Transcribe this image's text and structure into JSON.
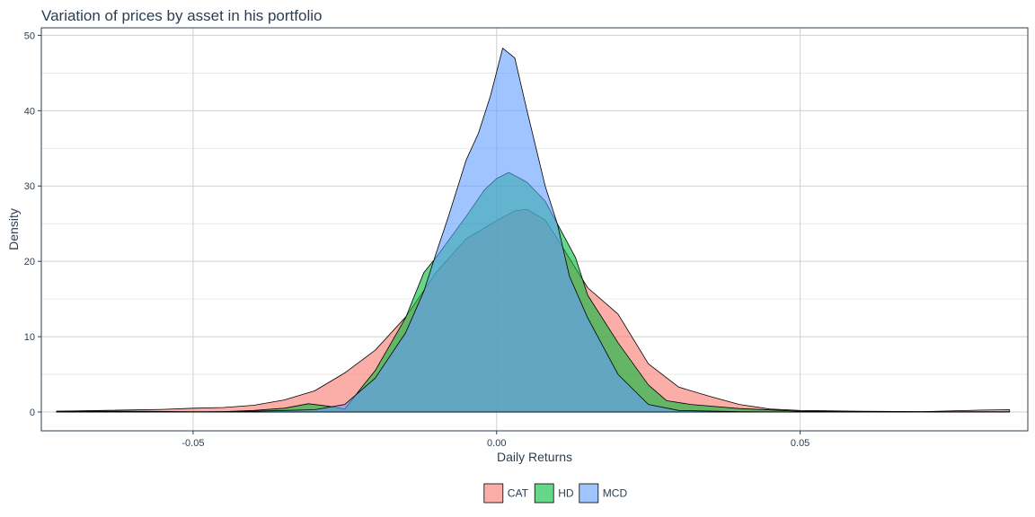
{
  "chart_data": {
    "type": "area",
    "title": "Variation of prices by asset in his portfolio",
    "xlabel": "Daily Returns",
    "ylabel": "Density",
    "xlim": [
      -0.075,
      0.0875
    ],
    "ylim": [
      -2.5,
      51
    ],
    "x_ticks": [
      -0.05,
      0.0,
      0.05
    ],
    "x_tick_labels": [
      "-0.05",
      "0.00",
      "0.05"
    ],
    "y_ticks": [
      0,
      10,
      20,
      30,
      40,
      50
    ],
    "y_tick_labels": [
      "0",
      "10",
      "20",
      "30",
      "40",
      "50"
    ],
    "grid": true,
    "legend_position": "bottom",
    "series": [
      {
        "name": "CAT",
        "color": "#F8766D",
        "points": [
          [
            -0.0725,
            0.1
          ],
          [
            -0.065,
            0.2
          ],
          [
            -0.055,
            0.35
          ],
          [
            -0.05,
            0.5
          ],
          [
            -0.045,
            0.6
          ],
          [
            -0.04,
            0.9
          ],
          [
            -0.035,
            1.6
          ],
          [
            -0.03,
            2.8
          ],
          [
            -0.025,
            5.2
          ],
          [
            -0.02,
            8.2
          ],
          [
            -0.015,
            12.6
          ],
          [
            -0.01,
            18.5
          ],
          [
            -0.005,
            23.0
          ],
          [
            0.0,
            25.4
          ],
          [
            0.003,
            26.7
          ],
          [
            0.005,
            26.9
          ],
          [
            0.008,
            25.5
          ],
          [
            0.01,
            23.0
          ],
          [
            0.015,
            16.5
          ],
          [
            0.02,
            13.0
          ],
          [
            0.025,
            6.4
          ],
          [
            0.03,
            3.3
          ],
          [
            0.035,
            2.1
          ],
          [
            0.04,
            1.0
          ],
          [
            0.045,
            0.4
          ],
          [
            0.05,
            0.2
          ],
          [
            0.06,
            0.1
          ],
          [
            0.07,
            0.05
          ],
          [
            0.08,
            0.25
          ],
          [
            0.0845,
            0.3
          ]
        ]
      },
      {
        "name": "HD",
        "color": "#00BA38",
        "points": [
          [
            -0.0725,
            0.1
          ],
          [
            -0.06,
            0.1
          ],
          [
            -0.05,
            0.05
          ],
          [
            -0.045,
            0.05
          ],
          [
            -0.04,
            0.2
          ],
          [
            -0.035,
            0.5
          ],
          [
            -0.031,
            1.1
          ],
          [
            -0.028,
            0.8
          ],
          [
            -0.025,
            0.4
          ],
          [
            -0.022,
            3.5
          ],
          [
            -0.02,
            5.5
          ],
          [
            -0.015,
            12.5
          ],
          [
            -0.012,
            18.5
          ],
          [
            -0.01,
            20.5
          ],
          [
            -0.005,
            26.0
          ],
          [
            -0.002,
            29.5
          ],
          [
            0.0,
            31.0
          ],
          [
            0.002,
            31.8
          ],
          [
            0.005,
            30.5
          ],
          [
            0.008,
            28.0
          ],
          [
            0.01,
            25.0
          ],
          [
            0.013,
            20.5
          ],
          [
            0.015,
            15.5
          ],
          [
            0.02,
            9.2
          ],
          [
            0.025,
            3.6
          ],
          [
            0.028,
            1.5
          ],
          [
            0.032,
            1.0
          ],
          [
            0.04,
            0.45
          ],
          [
            0.05,
            0.1
          ],
          [
            0.06,
            0.05
          ],
          [
            0.07,
            0.05
          ],
          [
            0.08,
            0.05
          ],
          [
            0.0845,
            0.05
          ]
        ]
      },
      {
        "name": "MCD",
        "color": "#619CFF",
        "points": [
          [
            -0.0725,
            0.0
          ],
          [
            -0.06,
            0.0
          ],
          [
            -0.05,
            0.0
          ],
          [
            -0.04,
            0.1
          ],
          [
            -0.035,
            0.2
          ],
          [
            -0.03,
            0.3
          ],
          [
            -0.025,
            1.0
          ],
          [
            -0.02,
            4.5
          ],
          [
            -0.015,
            10.5
          ],
          [
            -0.012,
            16.0
          ],
          [
            -0.01,
            21.0
          ],
          [
            -0.008,
            25.8
          ],
          [
            -0.005,
            33.5
          ],
          [
            -0.003,
            37.0
          ],
          [
            -0.001,
            42.0
          ],
          [
            0.001,
            48.3
          ],
          [
            0.003,
            47.0
          ],
          [
            0.005,
            40.0
          ],
          [
            0.008,
            30.0
          ],
          [
            0.01,
            25.0
          ],
          [
            0.012,
            18.0
          ],
          [
            0.015,
            12.5
          ],
          [
            0.02,
            5.0
          ],
          [
            0.025,
            1.0
          ],
          [
            0.03,
            0.2
          ],
          [
            0.04,
            0.05
          ],
          [
            0.05,
            0.0
          ],
          [
            0.0845,
            0.0
          ]
        ]
      }
    ]
  }
}
